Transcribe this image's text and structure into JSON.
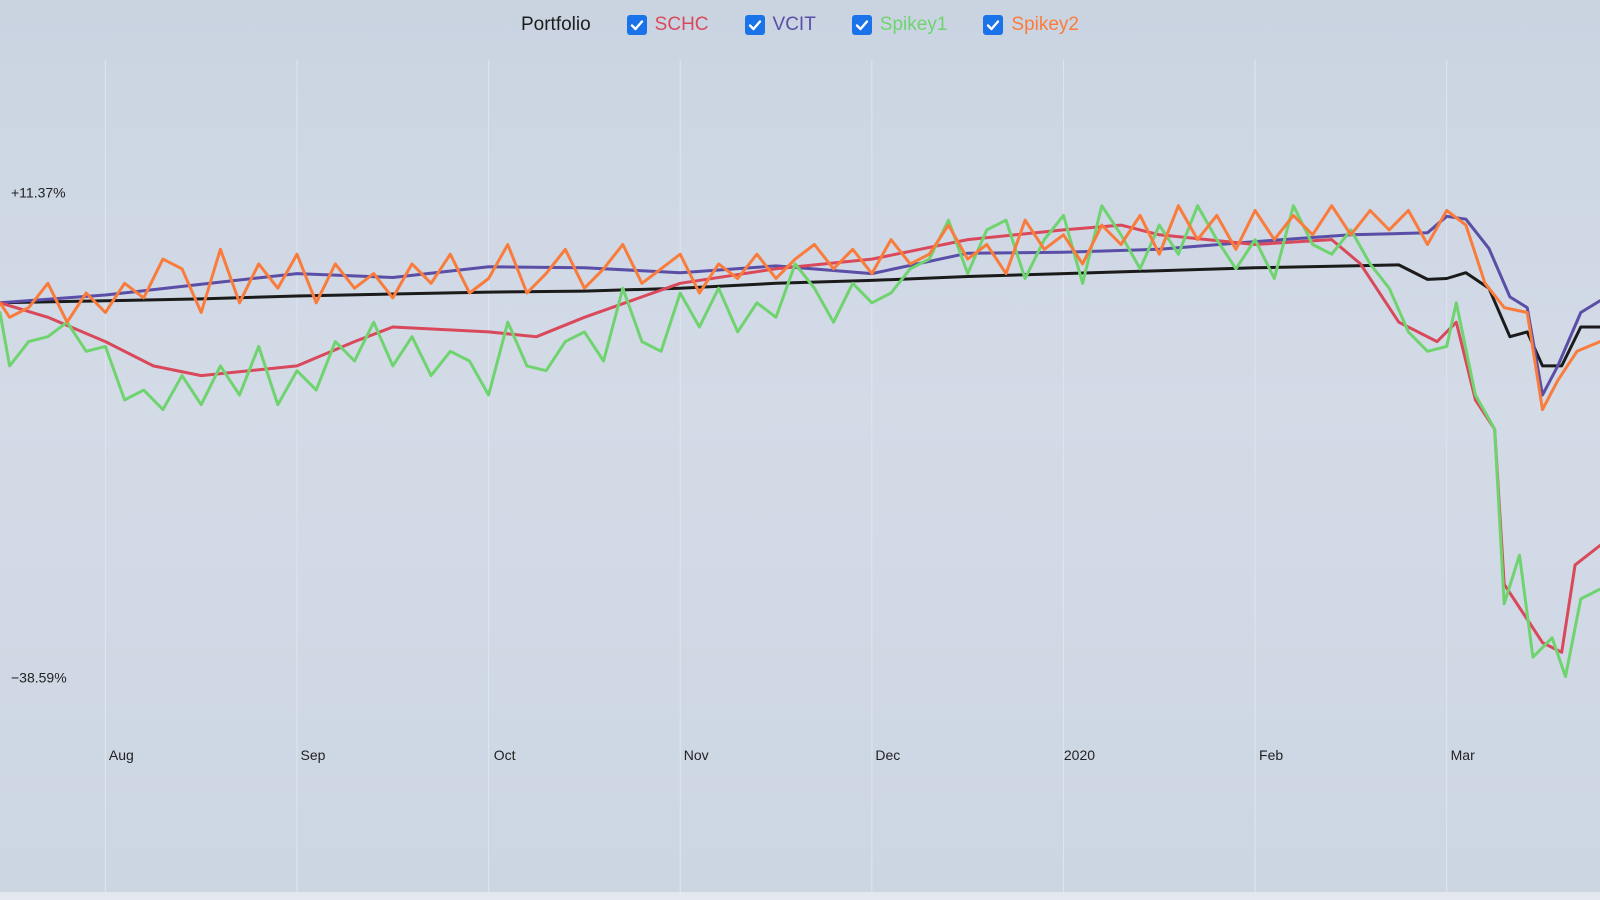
{
  "legend": {
    "title": "Portfolio",
    "items": [
      {
        "label": "SCHC",
        "color": "#d9495b",
        "checked": true
      },
      {
        "label": "VCIT",
        "color": "#5a4ea6",
        "checked": true
      },
      {
        "label": "Spikey1",
        "color": "#6fd46f",
        "checked": true
      },
      {
        "label": "Spikey2",
        "color": "#fa7c3c",
        "checked": true
      }
    ]
  },
  "chart_data": {
    "type": "line",
    "grid": true,
    "ylim": [
      -44,
      25
    ],
    "y_tick_labels": [
      {
        "value": 11.37,
        "label": "+11.37%"
      },
      {
        "value": -38.59,
        "label": "−38.59%"
      }
    ],
    "x_tick_labels": [
      {
        "month_index": 1,
        "label": "Aug"
      },
      {
        "month_index": 2,
        "label": "Sep"
      },
      {
        "month_index": 3,
        "label": "Oct"
      },
      {
        "month_index": 4,
        "label": "Nov"
      },
      {
        "month_index": 5,
        "label": "Dec"
      },
      {
        "month_index": 6,
        "label": "2020"
      },
      {
        "month_index": 7,
        "label": "Feb"
      },
      {
        "month_index": 8,
        "label": "Mar"
      }
    ],
    "x_range_months": [
      0.45,
      8.8
    ],
    "series": [
      {
        "name": "Portfolio",
        "color": "#1b1b1b",
        "points": [
          [
            0.45,
            0
          ],
          [
            1.0,
            0.2
          ],
          [
            1.5,
            0.4
          ],
          [
            2.0,
            0.7
          ],
          [
            2.5,
            0.9
          ],
          [
            3.0,
            1.1
          ],
          [
            3.5,
            1.2
          ],
          [
            4.0,
            1.5
          ],
          [
            4.5,
            2.0
          ],
          [
            5.0,
            2.3
          ],
          [
            5.5,
            2.7
          ],
          [
            6.0,
            3.0
          ],
          [
            6.5,
            3.3
          ],
          [
            7.0,
            3.6
          ],
          [
            7.5,
            3.8
          ],
          [
            7.75,
            3.9
          ],
          [
            7.9,
            2.4
          ],
          [
            8.0,
            2.5
          ],
          [
            8.1,
            3.1
          ],
          [
            8.22,
            1.5
          ],
          [
            8.33,
            -3.5
          ],
          [
            8.42,
            -3.0
          ],
          [
            8.5,
            -6.5
          ],
          [
            8.6,
            -6.5
          ],
          [
            8.7,
            -2.5
          ],
          [
            8.8,
            -2.5
          ]
        ]
      },
      {
        "name": "VCIT",
        "color": "#5a4ea6",
        "points": [
          [
            0.45,
            0
          ],
          [
            1.0,
            0.8
          ],
          [
            1.5,
            1.9
          ],
          [
            2.0,
            3.0
          ],
          [
            2.5,
            2.6
          ],
          [
            3.0,
            3.7
          ],
          [
            3.5,
            3.6
          ],
          [
            4.0,
            3.1
          ],
          [
            4.5,
            3.8
          ],
          [
            5.0,
            3.0
          ],
          [
            5.5,
            5.1
          ],
          [
            6.0,
            5.2
          ],
          [
            6.5,
            5.5
          ],
          [
            7.0,
            6.3
          ],
          [
            7.5,
            7.0
          ],
          [
            7.9,
            7.2
          ],
          [
            8.0,
            8.9
          ],
          [
            8.1,
            8.6
          ],
          [
            8.22,
            5.6
          ],
          [
            8.33,
            0.6
          ],
          [
            8.42,
            -0.5
          ],
          [
            8.5,
            -9.5
          ],
          [
            8.58,
            -6.5
          ],
          [
            8.7,
            -1.0
          ],
          [
            8.8,
            0.2
          ]
        ]
      },
      {
        "name": "SCHC",
        "color": "#d9495b",
        "points": [
          [
            0.45,
            0
          ],
          [
            0.7,
            -1.5
          ],
          [
            1.0,
            -4.0
          ],
          [
            1.25,
            -6.5
          ],
          [
            1.5,
            -7.5
          ],
          [
            2.0,
            -6.5
          ],
          [
            2.3,
            -4.0
          ],
          [
            2.5,
            -2.5
          ],
          [
            3.0,
            -3.0
          ],
          [
            3.25,
            -3.5
          ],
          [
            3.5,
            -1.5
          ],
          [
            4.0,
            2.0
          ],
          [
            4.5,
            3.5
          ],
          [
            5.0,
            4.5
          ],
          [
            5.5,
            6.5
          ],
          [
            6.0,
            7.5
          ],
          [
            6.3,
            8.0
          ],
          [
            6.5,
            7.0
          ],
          [
            7.0,
            6.0
          ],
          [
            7.4,
            6.5
          ],
          [
            7.55,
            4.0
          ],
          [
            7.75,
            -2.0
          ],
          [
            7.95,
            -4.0
          ],
          [
            8.05,
            -2.0
          ],
          [
            8.15,
            -10.0
          ],
          [
            8.25,
            -13.0
          ],
          [
            8.3,
            -29.0
          ],
          [
            8.4,
            -32.0
          ],
          [
            8.5,
            -35.0
          ],
          [
            8.6,
            -36.0
          ],
          [
            8.67,
            -27.0
          ],
          [
            8.8,
            -25.0
          ]
        ]
      },
      {
        "name": "Spikey1",
        "color": "#6fd46f",
        "points": [
          [
            0.45,
            -1.0
          ],
          [
            0.5,
            -6.5
          ],
          [
            0.6,
            -4.0
          ],
          [
            0.7,
            -3.5
          ],
          [
            0.8,
            -2.0
          ],
          [
            0.9,
            -5.0
          ],
          [
            1.0,
            -4.5
          ],
          [
            1.1,
            -10.0
          ],
          [
            1.2,
            -9.0
          ],
          [
            1.3,
            -11.0
          ],
          [
            1.4,
            -7.5
          ],
          [
            1.5,
            -10.5
          ],
          [
            1.6,
            -6.5
          ],
          [
            1.7,
            -9.5
          ],
          [
            1.8,
            -4.5
          ],
          [
            1.9,
            -10.5
          ],
          [
            2.0,
            -7.0
          ],
          [
            2.1,
            -9.0
          ],
          [
            2.2,
            -4.0
          ],
          [
            2.3,
            -6.0
          ],
          [
            2.4,
            -2.0
          ],
          [
            2.5,
            -6.5
          ],
          [
            2.6,
            -3.5
          ],
          [
            2.7,
            -7.5
          ],
          [
            2.8,
            -5.0
          ],
          [
            2.9,
            -6.0
          ],
          [
            3.0,
            -9.5
          ],
          [
            3.1,
            -2.0
          ],
          [
            3.2,
            -6.5
          ],
          [
            3.3,
            -7.0
          ],
          [
            3.4,
            -4.0
          ],
          [
            3.5,
            -3.0
          ],
          [
            3.6,
            -6.0
          ],
          [
            3.7,
            1.5
          ],
          [
            3.8,
            -4.0
          ],
          [
            3.9,
            -5.0
          ],
          [
            4.0,
            1.0
          ],
          [
            4.1,
            -2.5
          ],
          [
            4.2,
            1.5
          ],
          [
            4.3,
            -3.0
          ],
          [
            4.4,
            0.0
          ],
          [
            4.5,
            -1.5
          ],
          [
            4.6,
            4.0
          ],
          [
            4.7,
            1.5
          ],
          [
            4.8,
            -2.0
          ],
          [
            4.9,
            2.0
          ],
          [
            5.0,
            0.0
          ],
          [
            5.1,
            1.0
          ],
          [
            5.2,
            3.5
          ],
          [
            5.3,
            4.5
          ],
          [
            5.4,
            8.5
          ],
          [
            5.5,
            3.0
          ],
          [
            5.6,
            7.5
          ],
          [
            5.7,
            8.5
          ],
          [
            5.8,
            2.5
          ],
          [
            5.9,
            6.5
          ],
          [
            6.0,
            9.0
          ],
          [
            6.1,
            2.0
          ],
          [
            6.2,
            10.0
          ],
          [
            6.3,
            7.0
          ],
          [
            6.4,
            3.5
          ],
          [
            6.5,
            8.0
          ],
          [
            6.6,
            5.0
          ],
          [
            6.7,
            10.0
          ],
          [
            6.8,
            6.5
          ],
          [
            6.9,
            3.5
          ],
          [
            7.0,
            6.5
          ],
          [
            7.1,
            2.5
          ],
          [
            7.2,
            10.0
          ],
          [
            7.3,
            6.0
          ],
          [
            7.4,
            5.0
          ],
          [
            7.5,
            7.5
          ],
          [
            7.6,
            4.0
          ],
          [
            7.7,
            1.5
          ],
          [
            7.8,
            -3.0
          ],
          [
            7.9,
            -5.0
          ],
          [
            8.0,
            -4.5
          ],
          [
            8.05,
            0.0
          ],
          [
            8.15,
            -9.5
          ],
          [
            8.25,
            -13.0
          ],
          [
            8.3,
            -31.0
          ],
          [
            8.38,
            -26.0
          ],
          [
            8.45,
            -36.5
          ],
          [
            8.55,
            -34.5
          ],
          [
            8.62,
            -38.5
          ],
          [
            8.7,
            -30.5
          ],
          [
            8.8,
            -29.5
          ]
        ]
      },
      {
        "name": "Spikey2",
        "color": "#fa7c3c",
        "points": [
          [
            0.45,
            0
          ],
          [
            0.5,
            -1.5
          ],
          [
            0.6,
            -0.5
          ],
          [
            0.7,
            2.0
          ],
          [
            0.8,
            -2.0
          ],
          [
            0.9,
            1.0
          ],
          [
            1.0,
            -1.0
          ],
          [
            1.1,
            2.0
          ],
          [
            1.2,
            0.5
          ],
          [
            1.3,
            4.5
          ],
          [
            1.4,
            3.5
          ],
          [
            1.5,
            -1.0
          ],
          [
            1.6,
            5.5
          ],
          [
            1.7,
            0.0
          ],
          [
            1.8,
            4.0
          ],
          [
            1.9,
            1.5
          ],
          [
            2.0,
            5.0
          ],
          [
            2.1,
            0.0
          ],
          [
            2.2,
            4.0
          ],
          [
            2.3,
            1.5
          ],
          [
            2.4,
            3.0
          ],
          [
            2.5,
            0.5
          ],
          [
            2.6,
            4.0
          ],
          [
            2.7,
            2.0
          ],
          [
            2.8,
            5.0
          ],
          [
            2.9,
            1.0
          ],
          [
            3.0,
            2.5
          ],
          [
            3.1,
            6.0
          ],
          [
            3.2,
            1.0
          ],
          [
            3.3,
            3.0
          ],
          [
            3.4,
            5.5
          ],
          [
            3.5,
            1.5
          ],
          [
            3.6,
            3.5
          ],
          [
            3.7,
            6.0
          ],
          [
            3.8,
            2.0
          ],
          [
            3.9,
            3.5
          ],
          [
            4.0,
            5.0
          ],
          [
            4.1,
            1.0
          ],
          [
            4.2,
            4.0
          ],
          [
            4.3,
            2.5
          ],
          [
            4.4,
            5.0
          ],
          [
            4.5,
            2.5
          ],
          [
            4.6,
            4.5
          ],
          [
            4.7,
            6.0
          ],
          [
            4.8,
            3.5
          ],
          [
            4.9,
            5.5
          ],
          [
            5.0,
            3.0
          ],
          [
            5.1,
            6.5
          ],
          [
            5.2,
            4.0
          ],
          [
            5.3,
            5.0
          ],
          [
            5.4,
            8.0
          ],
          [
            5.5,
            4.5
          ],
          [
            5.6,
            6.0
          ],
          [
            5.7,
            3.0
          ],
          [
            5.8,
            8.5
          ],
          [
            5.9,
            5.5
          ],
          [
            6.0,
            7.0
          ],
          [
            6.1,
            4.0
          ],
          [
            6.2,
            8.0
          ],
          [
            6.3,
            6.0
          ],
          [
            6.4,
            9.0
          ],
          [
            6.5,
            5.0
          ],
          [
            6.6,
            10.0
          ],
          [
            6.7,
            6.5
          ],
          [
            6.8,
            9.0
          ],
          [
            6.9,
            5.5
          ],
          [
            7.0,
            9.5
          ],
          [
            7.1,
            6.5
          ],
          [
            7.2,
            9.0
          ],
          [
            7.3,
            7.0
          ],
          [
            7.4,
            10.0
          ],
          [
            7.5,
            7.0
          ],
          [
            7.6,
            9.5
          ],
          [
            7.7,
            7.5
          ],
          [
            7.8,
            9.5
          ],
          [
            7.9,
            6.0
          ],
          [
            8.0,
            9.5
          ],
          [
            8.1,
            8.0
          ],
          [
            8.2,
            2.0
          ],
          [
            8.3,
            -0.5
          ],
          [
            8.42,
            -1.0
          ],
          [
            8.5,
            -11.0
          ],
          [
            8.58,
            -8.0
          ],
          [
            8.68,
            -5.0
          ],
          [
            8.8,
            -4.0
          ]
        ]
      }
    ]
  }
}
